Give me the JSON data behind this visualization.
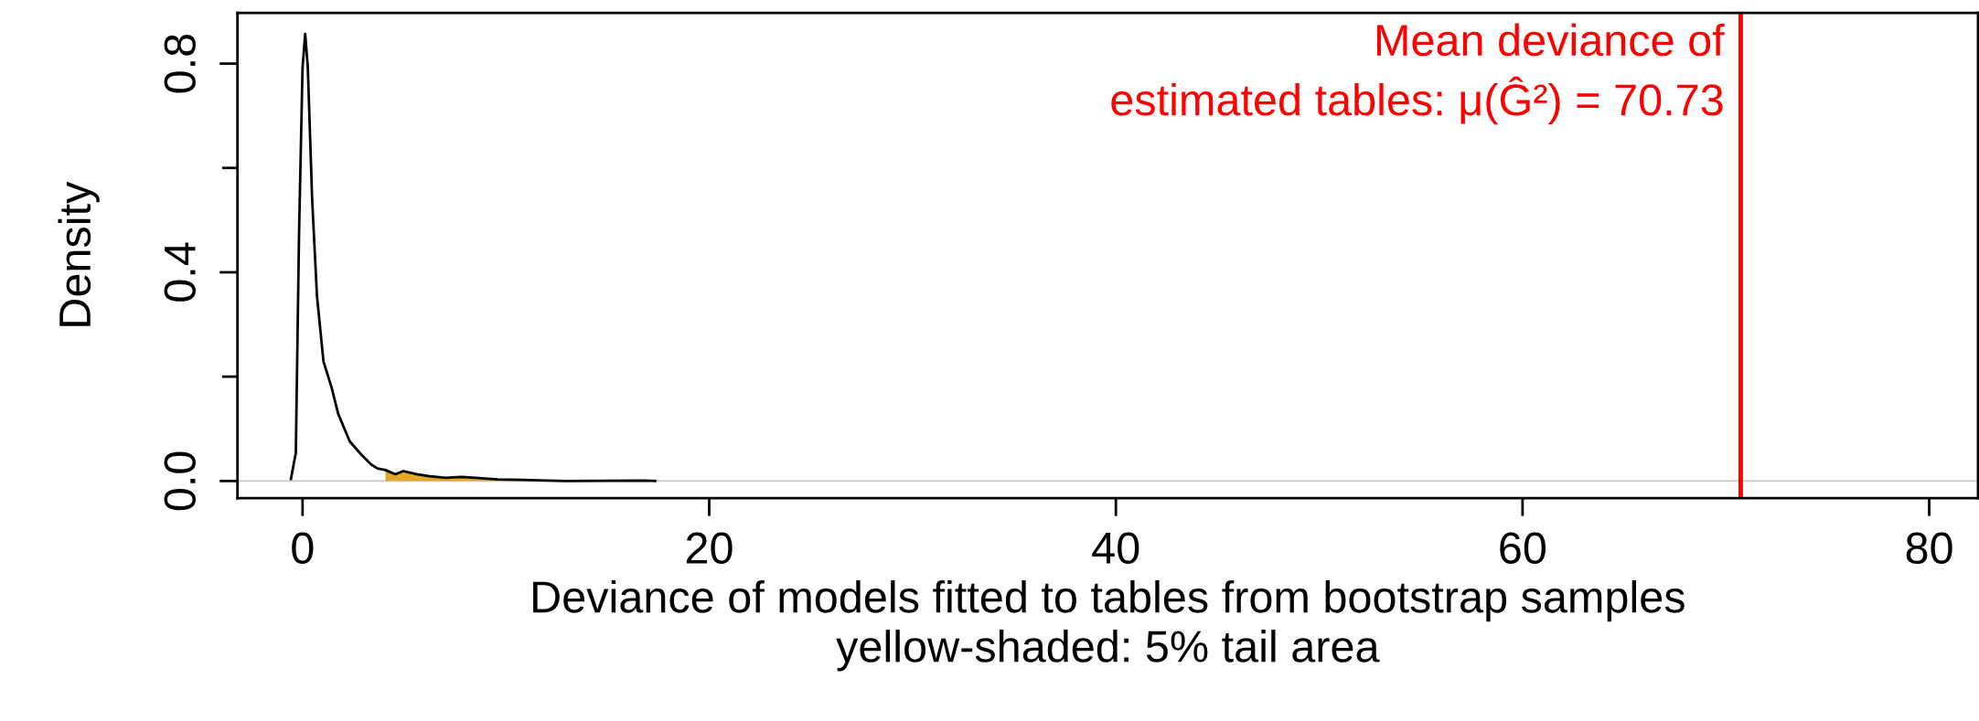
{
  "chart_data": {
    "type": "line",
    "xlabel": "Deviance of models fitted to tables from bootstrap samples\nyellow-shaded: 5% tail area",
    "ylabel": "Density",
    "series": [
      {
        "type": "area",
        "color": "#e3a824",
        "x": [
          4.08,
          4.56,
          4.96,
          5.6,
          6.25,
          7.05,
          7.8,
          8.5,
          9.6,
          10.8,
          12.9,
          16.8,
          17.34
        ],
        "values": [
          0.021,
          0.013,
          0.019,
          0.013,
          0.009,
          0.006,
          0.008,
          0.006,
          0.003,
          0.002,
          0.0,
          0.001,
          0.0
        ]
      },
      {
        "color": "#000000",
        "x": [
          -0.57,
          -0.33,
          -0.17,
          0.0,
          0.13,
          0.26,
          0.47,
          0.71,
          1.03,
          1.43,
          1.75,
          2.32,
          2.88,
          3.36,
          3.68,
          4.08,
          4.56,
          4.96,
          5.6,
          6.25,
          7.05,
          7.8,
          8.5,
          9.6,
          10.8,
          12.9,
          16.8,
          17.34
        ],
        "values": [
          0.004,
          0.054,
          0.479,
          0.792,
          0.857,
          0.792,
          0.542,
          0.354,
          0.229,
          0.179,
          0.129,
          0.076,
          0.051,
          0.032,
          0.024,
          0.021,
          0.013,
          0.019,
          0.013,
          0.009,
          0.006,
          0.008,
          0.006,
          0.003,
          0.002,
          0.0,
          0.001,
          0.0
        ]
      }
    ],
    "xlim": [
      -3.2,
      82.4
    ],
    "xticks": [
      0,
      20,
      40,
      60,
      80
    ],
    "ylim": [
      -0.033,
      0.897
    ],
    "yticks": [
      {
        "value": 0,
        "label": "0.0"
      },
      {
        "value": 0.2,
        "label": null
      },
      {
        "value": 0.4,
        "label": "0.4"
      },
      {
        "value": 0.6,
        "label": null
      },
      {
        "value": 0.8,
        "label": "0.8"
      }
    ],
    "ref_lines": [
      {
        "axis": "y",
        "value": 0,
        "color": "#c8c8c8"
      },
      {
        "axis": "x",
        "value": 70.73,
        "color": "#ff0000",
        "label": "Mean deviance of\nestimated tables: μ(Ĝ²) = 70.73"
      }
    ],
    "grid": false,
    "legend": false,
    "marker": "none",
    "line_style": "solid"
  }
}
